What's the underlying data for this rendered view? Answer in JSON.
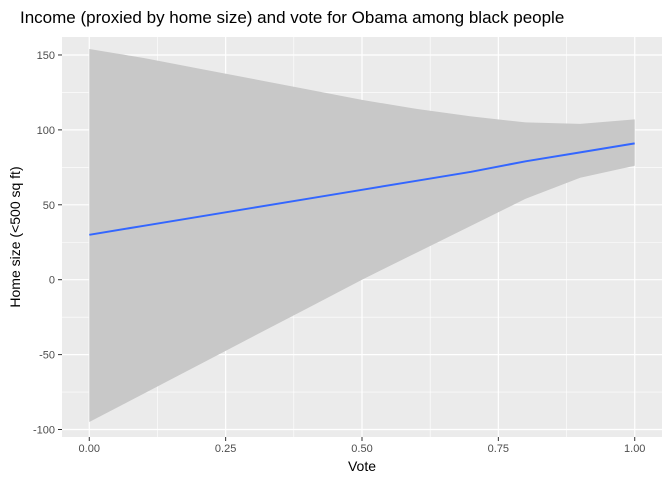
{
  "chart_data": {
    "type": "line",
    "title": "Income (proxied by home size) and vote for Obama among black people",
    "xlabel": "Vote",
    "ylabel": "Home size (<500 sq ft)",
    "xlim": [
      -0.05,
      1.05
    ],
    "ylim": [
      -105,
      162
    ],
    "x_ticks": [
      0,
      0.25,
      0.5,
      0.75,
      1
    ],
    "x_tick_labels": [
      "0.00",
      "0.25",
      "0.50",
      "0.75",
      "1.00"
    ],
    "y_ticks": [
      -100,
      -50,
      0,
      50,
      100,
      150
    ],
    "y_tick_labels": [
      "-100",
      "-50",
      "0",
      "50",
      "100",
      "150"
    ],
    "grid": true,
    "colors": {
      "line": "#3366FF",
      "band": "#c8c8c8",
      "panel": "#ebebeb",
      "grid": "#ffffff"
    },
    "series": [
      {
        "type": "line",
        "x": [
          0,
          0.1,
          0.2,
          0.3,
          0.4,
          0.5,
          0.6,
          0.7,
          0.8,
          0.9,
          1.0
        ],
        "values": [
          30,
          36,
          42,
          48,
          54,
          60,
          66,
          72,
          79,
          85,
          91
        ]
      },
      {
        "type": "ribbon",
        "x": [
          0,
          0.1,
          0.2,
          0.3,
          0.4,
          0.5,
          0.6,
          0.7,
          0.8,
          0.9,
          1.0
        ],
        "lower": [
          -95,
          -76,
          -57,
          -38,
          -19,
          0,
          18,
          36,
          54,
          68,
          76
        ],
        "upper": [
          154,
          148,
          141,
          134,
          127,
          120,
          114,
          109,
          105,
          104,
          107
        ]
      }
    ]
  }
}
